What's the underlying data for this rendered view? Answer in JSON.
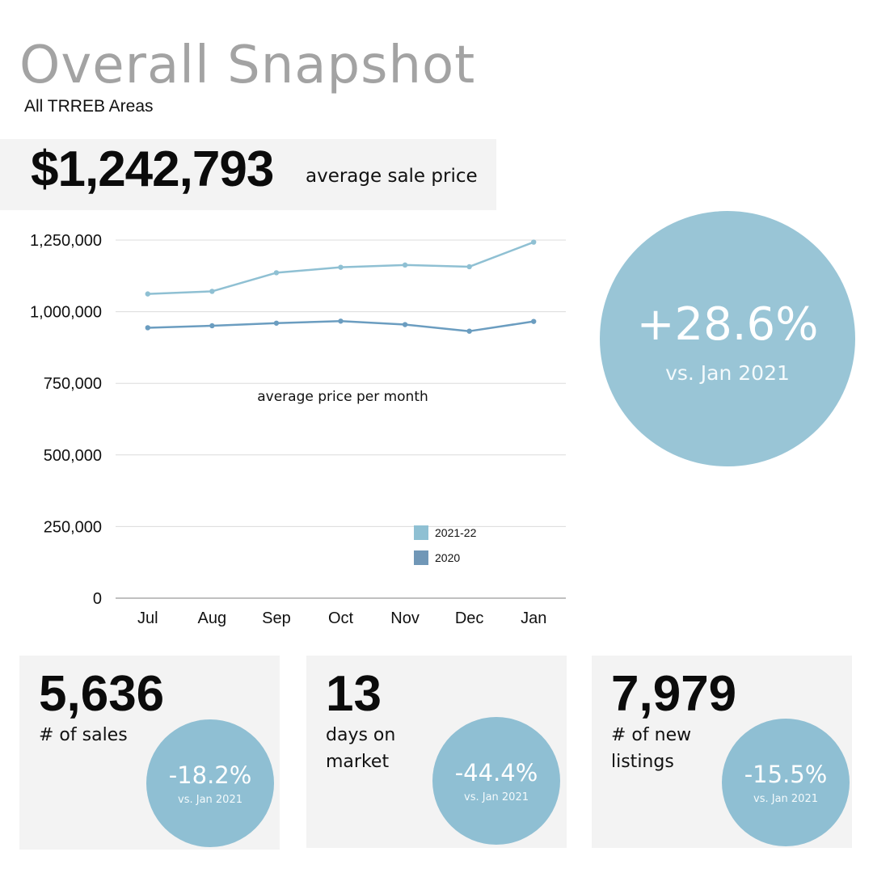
{
  "header": {
    "title": "Overall Snapshot",
    "subtitle": "All TRREB Areas"
  },
  "price": {
    "value": "$1,242,793",
    "label": "average sale price"
  },
  "yoy": {
    "percent": "+28.6%",
    "comparison": "vs. Jan 2021",
    "color": "#99c5d6"
  },
  "chart_data": {
    "type": "line",
    "title": "average price per month",
    "categories": [
      "Jul",
      "Aug",
      "Sep",
      "Oct",
      "Nov",
      "Dec",
      "Jan"
    ],
    "y_ticks": [
      {
        "value": 0,
        "label": "0"
      },
      {
        "value": 250000,
        "label": "250,000"
      },
      {
        "value": 500000,
        "label": "500,000"
      },
      {
        "value": 750000,
        "label": "750,000"
      },
      {
        "value": 1000000,
        "label": "1,000,000"
      },
      {
        "value": 1250000,
        "label": "1,250,000"
      }
    ],
    "ylim": [
      0,
      1250000
    ],
    "grid": true,
    "legend_position": "bottom-center",
    "series": [
      {
        "name": "2021-22",
        "color": "#8fc0d3",
        "values": [
          1062000,
          1071000,
          1136000,
          1155000,
          1163000,
          1157000,
          1242793
        ]
      },
      {
        "name": "2020",
        "color": "#6b9dc0",
        "values": [
          944000,
          951000,
          960000,
          967000,
          955000,
          932000,
          966000
        ]
      }
    ]
  },
  "stats": [
    {
      "value": "5,636",
      "label": "# of sales",
      "percent": "-18.2%",
      "comparison": "vs. Jan 2021"
    },
    {
      "value": "13",
      "label": "days on market",
      "percent": "-44.4%",
      "comparison": "vs. Jan 2021"
    },
    {
      "value": "7,979",
      "label": "# of new listings",
      "percent": "-15.5%",
      "comparison": "vs. Jan 2021"
    }
  ]
}
